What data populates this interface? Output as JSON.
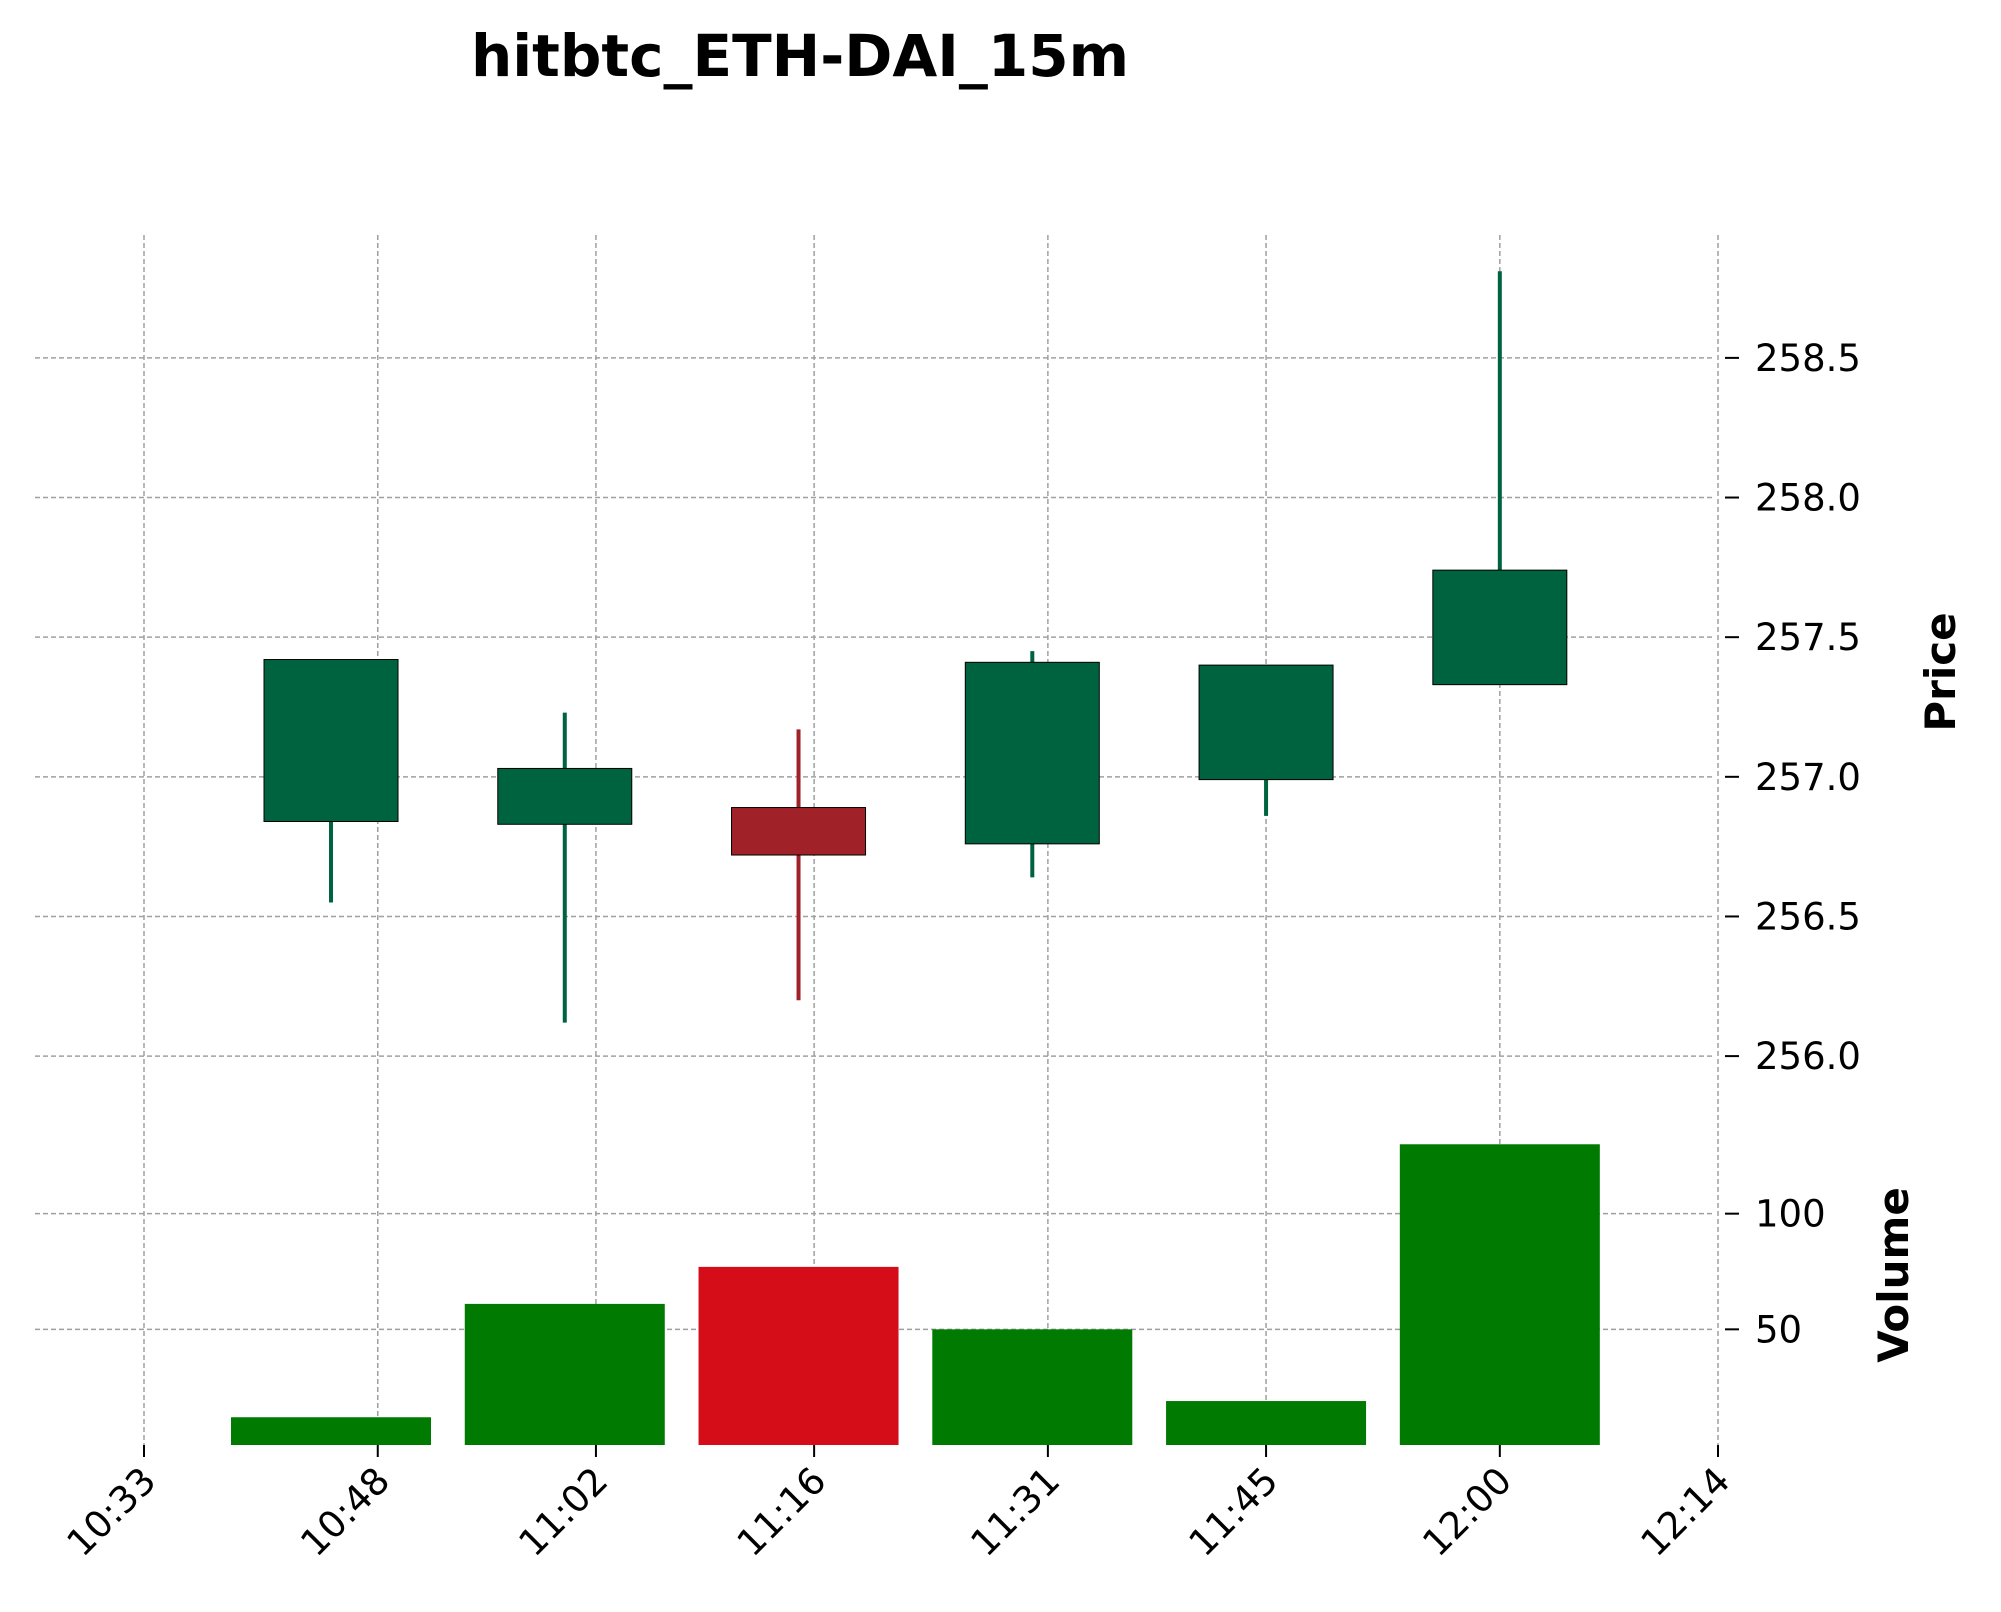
{
  "chart_data": {
    "type": "candlestick",
    "title": "hitbtc_ETH-DAI_15m",
    "price_ylabel": "Price",
    "volume_ylabel": "Volume",
    "grid": true,
    "x_tick_labels": [
      "10:33",
      "10:48",
      "11:02",
      "11:16",
      "11:31",
      "11:45",
      "12:00",
      "12:14"
    ],
    "x_tick_minutes": [
      633,
      648,
      662,
      676,
      691,
      705,
      720,
      734
    ],
    "price_ticks": [
      "256.0",
      "256.5",
      "257.0",
      "257.5",
      "258.0",
      "258.5"
    ],
    "price_tick_values": [
      256.0,
      256.5,
      257.0,
      257.5,
      258.0,
      258.5
    ],
    "price_ylim": [
      255.85,
      258.94
    ],
    "volume_ticks": [
      "50",
      "100"
    ],
    "volume_tick_values": [
      50,
      100
    ],
    "volume_ylim": [
      0,
      150
    ],
    "colors": {
      "up_candle": "#006340",
      "down_candle": "#a02128",
      "up_volume": "#007a00",
      "down_volume": "#d50d18",
      "grid": "#a0a0a0"
    },
    "candles": [
      {
        "time": "10:45",
        "open": 256.84,
        "high": 257.42,
        "low": 256.55,
        "close": 257.42,
        "volume": 12
      },
      {
        "time": "11:00",
        "open": 256.83,
        "high": 257.23,
        "low": 256.12,
        "close": 257.03,
        "volume": 61
      },
      {
        "time": "11:15",
        "open": 256.89,
        "high": 257.17,
        "low": 256.2,
        "close": 256.72,
        "volume": 77
      },
      {
        "time": "11:30",
        "open": 256.76,
        "high": 257.45,
        "low": 256.64,
        "close": 257.41,
        "volume": 50
      },
      {
        "time": "11:45",
        "open": 256.99,
        "high": 257.4,
        "low": 256.86,
        "close": 257.4,
        "volume": 19
      },
      {
        "time": "12:00",
        "open": 257.33,
        "high": 258.81,
        "low": 257.33,
        "close": 257.74,
        "volume": 130
      }
    ]
  }
}
